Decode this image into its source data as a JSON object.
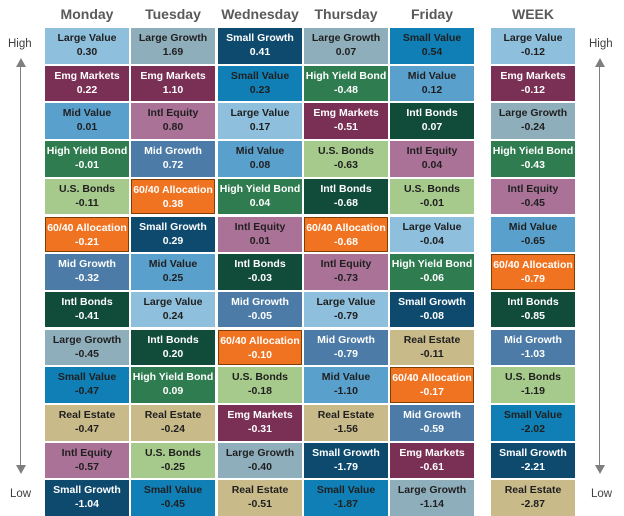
{
  "labels": {
    "high": "High",
    "low": "Low"
  },
  "colors": {
    "Large Value": "#8ebfdc",
    "Large Growth": "#8faebc",
    "Small Value": "#0f7fb5",
    "Small Growth": "#0d4a6e",
    "Mid Value": "#5aa0cc",
    "Mid Growth": "#4b7ba6",
    "Emg Markets": "#7a2f55",
    "Intl Equity": "#a97296",
    "High Yield Bond": "#2e7c4f",
    "Intl Bonds": "#114b3a",
    "U.S. Bonds": "#a6c98c",
    "Real Estate": "#c9ba8a",
    "60/40 Allocation": "#f07321"
  },
  "dark_text": [
    "Large Value",
    "Large Growth",
    "Mid Value",
    "Intl Equity",
    "U.S. Bonds",
    "Real Estate",
    "Small Value"
  ],
  "chart_data": {
    "type": "table",
    "columns": [
      {
        "name": "Monday",
        "cells": [
          {
            "name": "Large Value",
            "value": "0.30"
          },
          {
            "name": "Emg Markets",
            "value": "0.22"
          },
          {
            "name": "Mid Value",
            "value": "0.01"
          },
          {
            "name": "High Yield Bond",
            "value": "-0.01"
          },
          {
            "name": "U.S. Bonds",
            "value": "-0.11"
          },
          {
            "name": "60/40 Allocation",
            "value": "-0.21"
          },
          {
            "name": "Mid Growth",
            "value": "-0.32"
          },
          {
            "name": "Intl Bonds",
            "value": "-0.41"
          },
          {
            "name": "Large Growth",
            "value": "-0.45"
          },
          {
            "name": "Small Value",
            "value": "-0.47"
          },
          {
            "name": "Real Estate",
            "value": "-0.47"
          },
          {
            "name": "Intl Equity",
            "value": "-0.57"
          },
          {
            "name": "Small Growth",
            "value": "-1.04"
          }
        ]
      },
      {
        "name": "Tuesday",
        "cells": [
          {
            "name": "Large Growth",
            "value": "1.69"
          },
          {
            "name": "Emg Markets",
            "value": "1.10"
          },
          {
            "name": "Intl Equity",
            "value": "0.80"
          },
          {
            "name": "Mid Growth",
            "value": "0.72"
          },
          {
            "name": "60/40 Allocation",
            "value": "0.38"
          },
          {
            "name": "Small Growth",
            "value": "0.29"
          },
          {
            "name": "Mid Value",
            "value": "0.25"
          },
          {
            "name": "Large Value",
            "value": "0.24"
          },
          {
            "name": "Intl Bonds",
            "value": "0.20"
          },
          {
            "name": "High Yield Bond",
            "value": "0.09"
          },
          {
            "name": "Real Estate",
            "value": "-0.24"
          },
          {
            "name": "U.S. Bonds",
            "value": "-0.25"
          },
          {
            "name": "Small Value",
            "value": "-0.45"
          }
        ]
      },
      {
        "name": "Wednesday",
        "cells": [
          {
            "name": "Small Growth",
            "value": "0.41"
          },
          {
            "name": "Small Value",
            "value": "0.23"
          },
          {
            "name": "Large Value",
            "value": "0.17"
          },
          {
            "name": "Mid Value",
            "value": "0.08"
          },
          {
            "name": "High Yield Bond",
            "value": "0.04"
          },
          {
            "name": "Intl Equity",
            "value": "0.01"
          },
          {
            "name": "Intl Bonds",
            "value": "-0.03"
          },
          {
            "name": "Mid Growth",
            "value": "-0.05"
          },
          {
            "name": "60/40 Allocation",
            "value": "-0.10"
          },
          {
            "name": "U.S. Bonds",
            "value": "-0.18"
          },
          {
            "name": "Emg Markets",
            "value": "-0.31"
          },
          {
            "name": "Large Growth",
            "value": "-0.40"
          },
          {
            "name": "Real Estate",
            "value": "-0.51"
          }
        ]
      },
      {
        "name": "Thursday",
        "cells": [
          {
            "name": "Large Growth",
            "value": "0.07"
          },
          {
            "name": "High Yield Bond",
            "value": "-0.48"
          },
          {
            "name": "Emg Markets",
            "value": "-0.51"
          },
          {
            "name": "U.S. Bonds",
            "value": "-0.63"
          },
          {
            "name": "Intl Bonds",
            "value": "-0.68"
          },
          {
            "name": "60/40 Allocation",
            "value": "-0.68"
          },
          {
            "name": "Intl Equity",
            "value": "-0.73"
          },
          {
            "name": "Large Value",
            "value": "-0.79"
          },
          {
            "name": "Mid Growth",
            "value": "-0.79"
          },
          {
            "name": "Mid Value",
            "value": "-1.10"
          },
          {
            "name": "Real Estate",
            "value": "-1.56"
          },
          {
            "name": "Small Growth",
            "value": "-1.79"
          },
          {
            "name": "Small Value",
            "value": "-1.87"
          }
        ]
      },
      {
        "name": "Friday",
        "cells": [
          {
            "name": "Small Value",
            "value": "0.54"
          },
          {
            "name": "Mid Value",
            "value": "0.12"
          },
          {
            "name": "Intl Bonds",
            "value": "0.07"
          },
          {
            "name": "Intl Equity",
            "value": "0.04"
          },
          {
            "name": "U.S. Bonds",
            "value": "-0.01"
          },
          {
            "name": "Large Value",
            "value": "-0.04"
          },
          {
            "name": "High Yield Bond",
            "value": "-0.06"
          },
          {
            "name": "Small Growth",
            "value": "-0.08"
          },
          {
            "name": "Real Estate",
            "value": "-0.11"
          },
          {
            "name": "60/40 Allocation",
            "value": "-0.17"
          },
          {
            "name": "Mid Growth",
            "value": "-0.59"
          },
          {
            "name": "Emg Markets",
            "value": "-0.61"
          },
          {
            "name": "Large Growth",
            "value": "-1.14"
          }
        ]
      },
      {
        "name": "WEEK",
        "cells": [
          {
            "name": "Large Value",
            "value": "-0.12"
          },
          {
            "name": "Emg Markets",
            "value": "-0.12"
          },
          {
            "name": "Large Growth",
            "value": "-0.24"
          },
          {
            "name": "High Yield Bond",
            "value": "-0.43"
          },
          {
            "name": "Intl Equity",
            "value": "-0.45"
          },
          {
            "name": "Mid Value",
            "value": "-0.65"
          },
          {
            "name": "60/40 Allocation",
            "value": "-0.79"
          },
          {
            "name": "Intl Bonds",
            "value": "-0.85"
          },
          {
            "name": "Mid Growth",
            "value": "-1.03"
          },
          {
            "name": "U.S. Bonds",
            "value": "-1.19"
          },
          {
            "name": "Small Value",
            "value": "-2.02"
          },
          {
            "name": "Small Growth",
            "value": "-2.21"
          },
          {
            "name": "Real Estate",
            "value": "-2.87"
          }
        ]
      }
    ]
  }
}
